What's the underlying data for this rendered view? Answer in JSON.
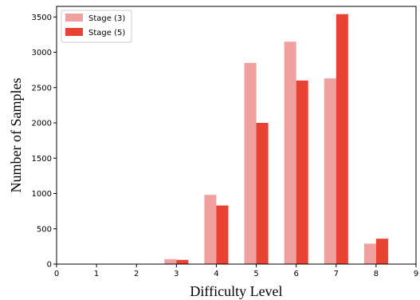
{
  "chart_data": {
    "type": "bar",
    "title": "",
    "xlabel": "Difficulty Level",
    "ylabel": "Number of Samples",
    "categories": [
      3,
      4,
      5,
      6,
      7,
      8
    ],
    "xlim": [
      0,
      9
    ],
    "ylim": [
      0,
      3650
    ],
    "xticks": [
      0,
      1,
      2,
      3,
      4,
      5,
      6,
      7,
      8,
      9
    ],
    "yticks": [
      0,
      500,
      1000,
      1500,
      2000,
      2500,
      3000,
      3500
    ],
    "grid": false,
    "legend_position": "top-left",
    "series": [
      {
        "name": "Stage (3)",
        "color": "#f0a09e",
        "values": [
          70,
          980,
          2850,
          3150,
          2630,
          290
        ]
      },
      {
        "name": "Stage (5)",
        "color": "#e84233",
        "values": [
          60,
          830,
          2000,
          2600,
          3540,
          360
        ]
      }
    ]
  }
}
